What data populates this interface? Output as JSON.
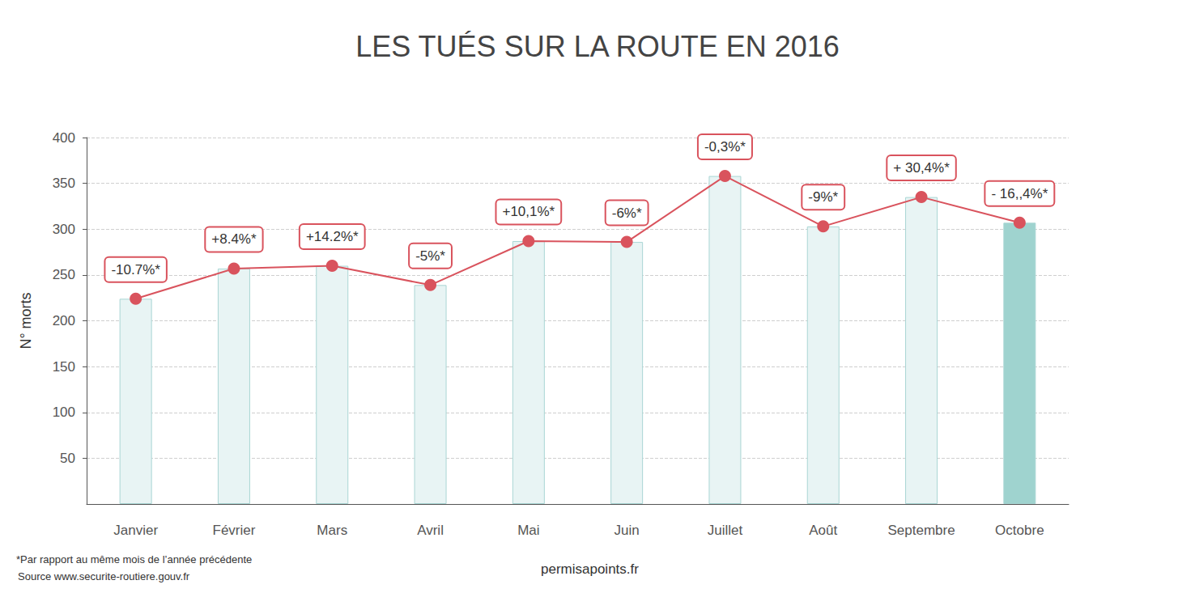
{
  "chart_data": {
    "type": "bar",
    "title": "LES TUÉS SUR LA ROUTE EN 2016",
    "y_label": "N° morts",
    "categories": [
      "Janvier",
      "Février",
      "Mars",
      "Avril",
      "Mai",
      "Juin",
      "Juillet",
      "Août",
      "Septembre",
      "Octobre"
    ],
    "series": [
      {
        "type": "bar",
        "colors": [
          "#e8f4f4",
          "#e8f4f4",
          "#e8f4f4",
          "#e8f4f4",
          "#e8f4f4",
          "#e8f4f4",
          "#e8f4f4",
          "#e8f4f4",
          "#e8f4f4",
          "#9fd3cf"
        ],
        "values": [
          224,
          257,
          260,
          239,
          287,
          286,
          358,
          303,
          335,
          307
        ]
      },
      {
        "type": "line",
        "color": "#d9535d",
        "marker": "circle",
        "values": [
          224,
          257,
          260,
          239,
          287,
          286,
          358,
          303,
          335,
          307
        ],
        "annotations": [
          "-10.7%*",
          "+8.4%*",
          "+14.2%*",
          "-5%*",
          "+10,1%*",
          "-6%*",
          "-0,3%*",
          "-9%*",
          "+ 30,4%*",
          "- 16,,4%*"
        ]
      }
    ],
    "ylim": [
      0,
      400
    ],
    "yticks": [
      50,
      100,
      150,
      200,
      250,
      300,
      350,
      400
    ],
    "grid": true,
    "note": "*Par rapport au même mois de l’année précédente",
    "source": "Source www.securite-routiere.gouv.fr",
    "credit": "permisapoints.fr"
  }
}
